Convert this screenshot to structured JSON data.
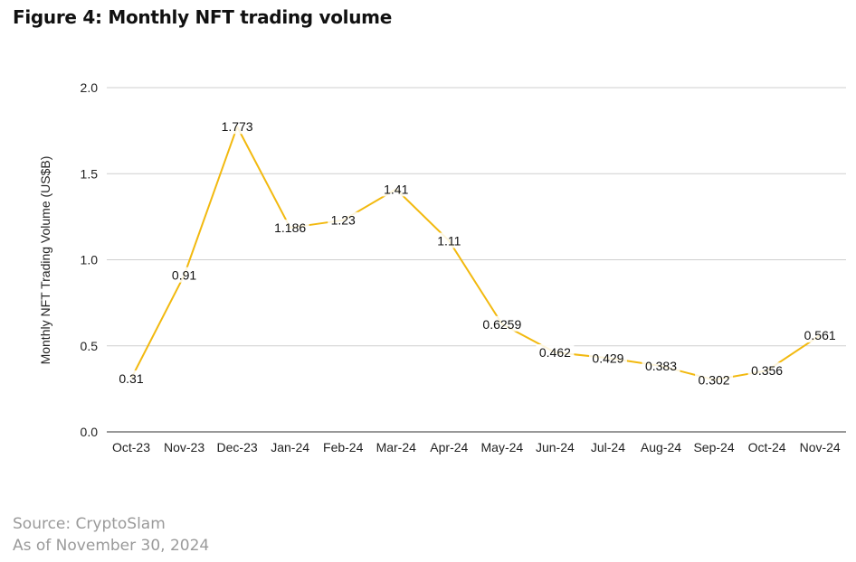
{
  "chart_data": {
    "type": "line",
    "title": "Figure 4: Monthly NFT trading volume",
    "xlabel": "",
    "ylabel": "Monthly NFT Trading Volume (US$B)",
    "categories": [
      "Oct-23",
      "Nov-23",
      "Dec-23",
      "Jan-24",
      "Feb-24",
      "Mar-24",
      "Apr-24",
      "May-24",
      "Jun-24",
      "Jul-24",
      "Aug-24",
      "Sep-24",
      "Oct-24",
      "Nov-24"
    ],
    "values": [
      0.31,
      0.91,
      1.773,
      1.186,
      1.23,
      1.41,
      1.11,
      0.6259,
      0.462,
      0.429,
      0.383,
      0.302,
      0.356,
      0.561
    ],
    "data_labels": [
      "0.31",
      "0.91",
      "1.773",
      "1.186",
      "1.23",
      "1.41",
      "1.11",
      "0.6259",
      "0.462",
      "0.429",
      "0.383",
      "0.302",
      "0.356",
      "0.561"
    ],
    "ylim": [
      0,
      2.0
    ],
    "yticks": [
      "0.0",
      "0.5",
      "1.0",
      "1.5",
      "2.0"
    ],
    "grid": true,
    "legend": "none",
    "line_color": "#f2b90f"
  },
  "footer": {
    "source": "Source: CryptoSlam",
    "as_of": "As of November 30, 2024"
  }
}
